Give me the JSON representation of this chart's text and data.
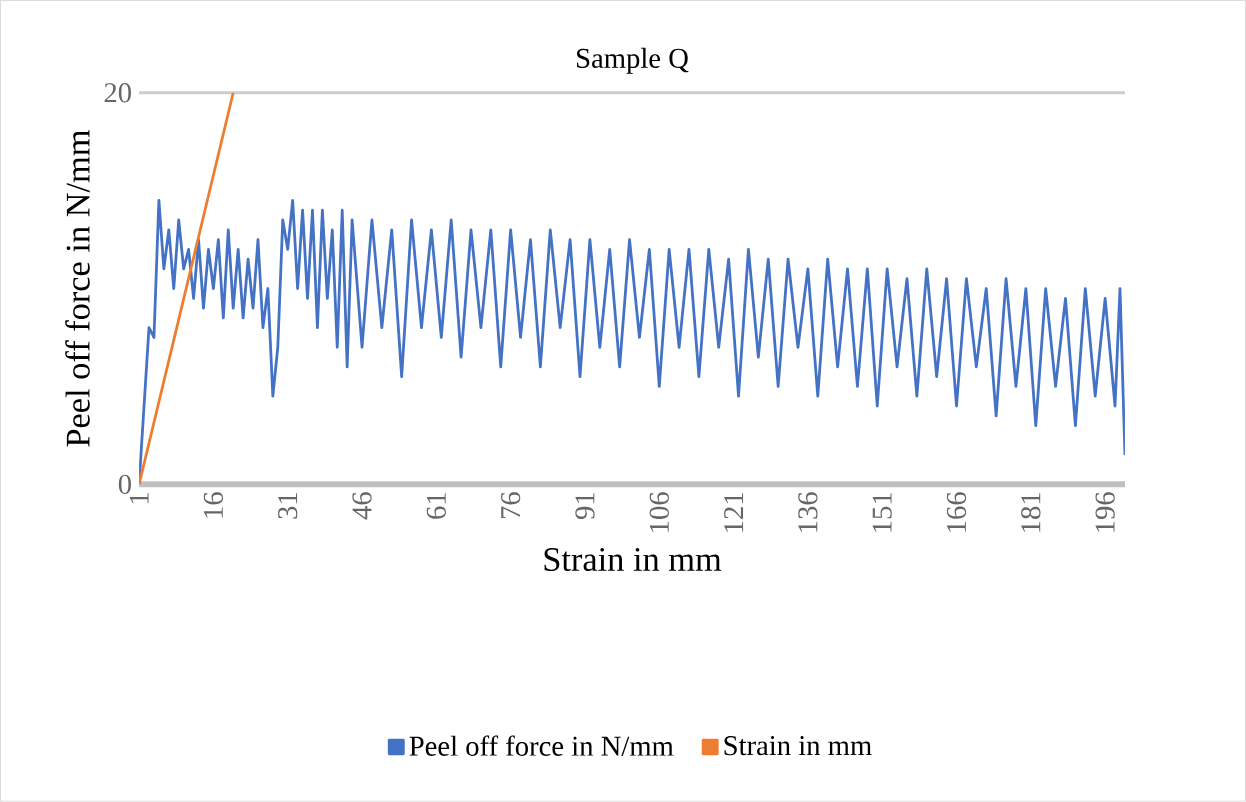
{
  "chart_data": {
    "type": "line",
    "title": "Sample Q",
    "xlabel": "Strain in mm",
    "ylabel": "Peel off force in N/mm",
    "xlim": [
      1,
      200
    ],
    "xticks": [
      1,
      16,
      31,
      46,
      61,
      76,
      91,
      106,
      121,
      136,
      151,
      166,
      181,
      196
    ],
    "ylim": [
      0,
      20
    ],
    "yticks": [
      0,
      20
    ],
    "grid": "y",
    "legend": "bottom",
    "marker": "none",
    "line_style": "solid",
    "series": [
      {
        "name": "Peel off force in N/mm",
        "color": "#4472c4",
        "x": [
          1,
          2,
          3,
          4,
          5,
          6,
          7,
          8,
          9,
          10,
          11,
          12,
          13,
          14,
          15,
          16,
          17,
          18,
          19,
          20,
          21,
          22,
          23,
          24,
          25,
          26,
          27,
          28,
          29,
          30,
          31,
          32,
          33,
          34,
          35,
          36,
          37,
          38,
          39,
          40,
          41,
          42,
          43,
          44,
          46,
          48,
          50,
          52,
          54,
          56,
          58,
          60,
          62,
          64,
          66,
          68,
          70,
          72,
          74,
          76,
          78,
          80,
          82,
          84,
          86,
          88,
          90,
          92,
          94,
          96,
          98,
          100,
          102,
          104,
          106,
          108,
          110,
          112,
          114,
          116,
          118,
          120,
          122,
          124,
          126,
          128,
          130,
          132,
          134,
          136,
          138,
          140,
          142,
          144,
          146,
          148,
          150,
          152,
          154,
          156,
          158,
          160,
          162,
          164,
          166,
          168,
          170,
          172,
          174,
          176,
          178,
          180,
          182,
          184,
          186,
          188,
          190,
          192,
          194,
          196,
          198,
          199,
          200
        ],
        "values": [
          0,
          4,
          8,
          7.5,
          14.5,
          11,
          13,
          10,
          13.5,
          11,
          12,
          9.5,
          12.5,
          9,
          12,
          10,
          12.5,
          8.5,
          13,
          9,
          12,
          8.5,
          11.5,
          9,
          12.5,
          8,
          10,
          4.5,
          7,
          13.5,
          12,
          14.5,
          10,
          14,
          9.5,
          14,
          8,
          14,
          9.5,
          13,
          7,
          14,
          6,
          13.5,
          7,
          13.5,
          8,
          13,
          5.5,
          13.5,
          8,
          13,
          7.5,
          13.5,
          6.5,
          13,
          8,
          13,
          6,
          13,
          7.5,
          12.5,
          6,
          13,
          8,
          12.5,
          5.5,
          12.5,
          7,
          12,
          6,
          12.5,
          7.5,
          12,
          5,
          12,
          7,
          12,
          5.5,
          12,
          7,
          11.5,
          4.5,
          12,
          6.5,
          11.5,
          5,
          11.5,
          7,
          11,
          4.5,
          11.5,
          6,
          11,
          5,
          11,
          4,
          11,
          6,
          10.5,
          4.5,
          11,
          5.5,
          10.5,
          4,
          10.5,
          6,
          10,
          3.5,
          10.5,
          5,
          10,
          3,
          10,
          5,
          9.5,
          3,
          10,
          4.5,
          9.5,
          4,
          10,
          1.5
        ]
      },
      {
        "name": "Strain in mm",
        "color": "#ed7d31",
        "x": [
          1,
          20
        ],
        "values": [
          0,
          20
        ]
      }
    ]
  }
}
